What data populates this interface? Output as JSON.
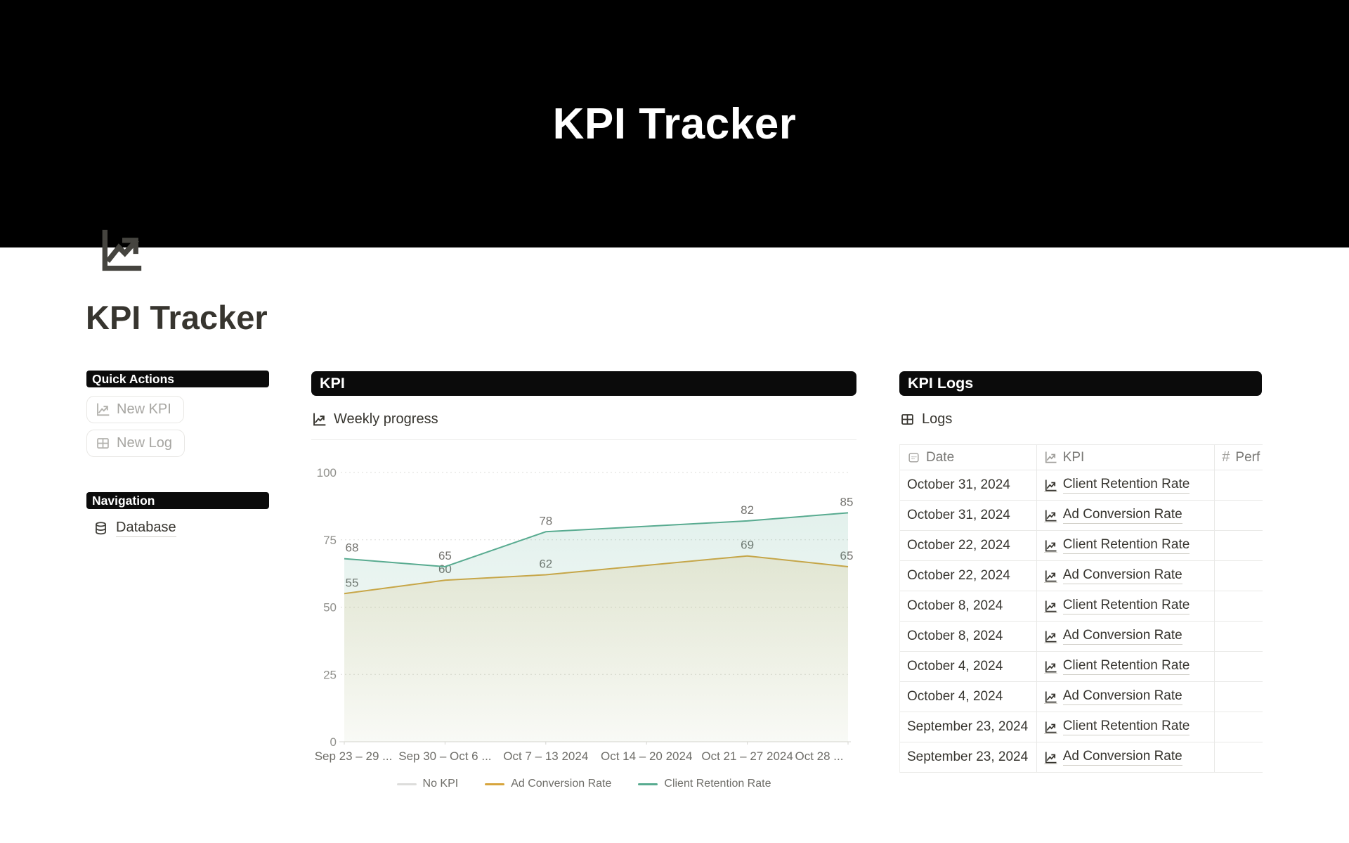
{
  "banner": {
    "title": "KPI Tracker"
  },
  "page": {
    "heading": "KPI Tracker",
    "icon": "line-chart"
  },
  "sidebar": {
    "quick_actions_label": "Quick Actions",
    "buttons": [
      {
        "label": "New KPI",
        "icon": "line-chart-icon"
      },
      {
        "label": "New Log",
        "icon": "table-icon"
      }
    ],
    "navigation_label": "Navigation",
    "nav_items": [
      {
        "label": "Database",
        "icon": "database-icon"
      }
    ]
  },
  "kpi_section": {
    "header": "KPI",
    "subtitle": "Weekly progress",
    "subtitle_icon": "line-chart-icon"
  },
  "chart_data": {
    "type": "area",
    "title": "Weekly progress",
    "x_categories": [
      "Sep 23 – 29 ...",
      "Sep 30 – Oct 6 ...",
      "Oct 7 – 13 2024",
      "Oct 14 – 20 2024",
      "Oct 21 – 27 2024",
      "Oct 28 ..."
    ],
    "ylim": [
      0,
      100
    ],
    "yticks": [
      0,
      25,
      50,
      75,
      100
    ],
    "grid": "dotted-horizontal",
    "legend_position": "bottom",
    "series": [
      {
        "name": "No KPI",
        "color": "#dddddb",
        "points": []
      },
      {
        "name": "Ad Conversion Rate",
        "color": "#d7a53d",
        "points": [
          {
            "x": 0,
            "y": 55
          },
          {
            "x": 1,
            "y": 60
          },
          {
            "x": 2,
            "y": 62
          },
          {
            "x": 4,
            "y": 69
          },
          {
            "x": 5,
            "y": 65
          }
        ]
      },
      {
        "name": "Client Retention Rate",
        "color": "#58ab90",
        "points": [
          {
            "x": 0,
            "y": 68
          },
          {
            "x": 1,
            "y": 65
          },
          {
            "x": 2,
            "y": 78
          },
          {
            "x": 4,
            "y": 82
          },
          {
            "x": 5,
            "y": 85
          }
        ]
      }
    ]
  },
  "logs_section": {
    "header": "KPI Logs",
    "table_title": "Logs",
    "table_title_icon": "table-icon",
    "columns": [
      {
        "label": "Date",
        "icon": "calendar-icon"
      },
      {
        "label": "KPI",
        "icon": "line-chart-icon"
      },
      {
        "label": "Perf",
        "icon": "hash-icon"
      }
    ],
    "rows": [
      {
        "date": "October 31, 2024",
        "kpi": "Client Retention Rate",
        "perf": ""
      },
      {
        "date": "October 31, 2024",
        "kpi": "Ad Conversion Rate",
        "perf": ""
      },
      {
        "date": "October 22, 2024",
        "kpi": "Client Retention Rate",
        "perf": ""
      },
      {
        "date": "October 22, 2024",
        "kpi": "Ad Conversion Rate",
        "perf": ""
      },
      {
        "date": "October 8, 2024",
        "kpi": "Client Retention Rate",
        "perf": ""
      },
      {
        "date": "October 8, 2024",
        "kpi": "Ad Conversion Rate",
        "perf": ""
      },
      {
        "date": "October 4, 2024",
        "kpi": "Client Retention Rate",
        "perf": ""
      },
      {
        "date": "October 4, 2024",
        "kpi": "Ad Conversion Rate",
        "perf": ""
      },
      {
        "date": "September 23, 2024",
        "kpi": "Client Retention Rate",
        "perf": ""
      },
      {
        "date": "September 23, 2024",
        "kpi": "Ad Conversion Rate",
        "perf": ""
      }
    ]
  }
}
